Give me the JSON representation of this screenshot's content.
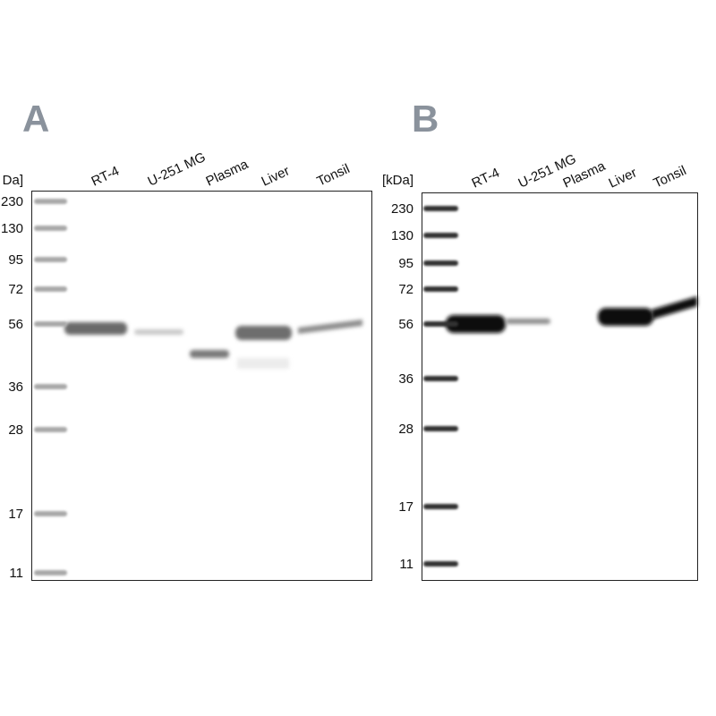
{
  "panels": [
    {
      "label": "A",
      "unit": "Da]",
      "lanes": [
        "RT-4",
        "U-251 MG",
        "Plasma",
        "Liver",
        "Tonsil"
      ],
      "markers": [
        230,
        130,
        95,
        72,
        56,
        36,
        28,
        17,
        11
      ]
    },
    {
      "label": "B",
      "unit": "[kDa]",
      "lanes": [
        "RT-4",
        "U-251 MG",
        "Plasma",
        "Liver",
        "Tonsil"
      ],
      "markers": [
        230,
        130,
        95,
        72,
        56,
        36,
        28,
        17,
        11
      ]
    }
  ]
}
